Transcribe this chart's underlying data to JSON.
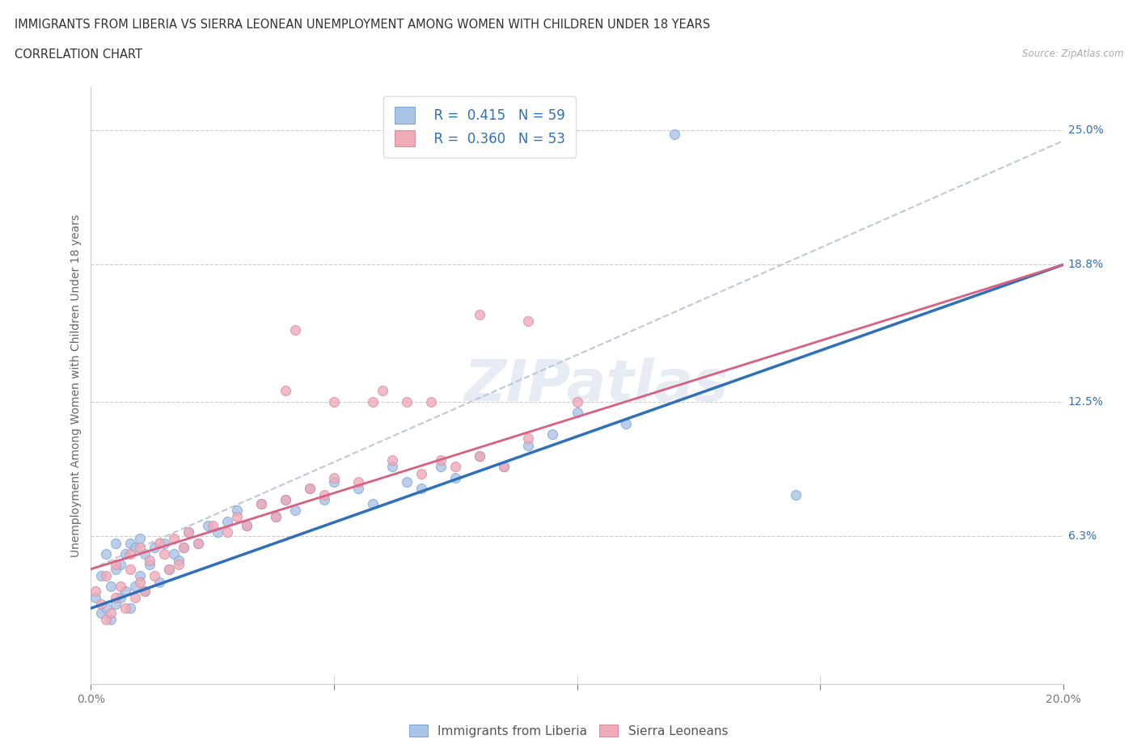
{
  "title_line1": "IMMIGRANTS FROM LIBERIA VS SIERRA LEONEAN UNEMPLOYMENT AMONG WOMEN WITH CHILDREN UNDER 18 YEARS",
  "title_line2": "CORRELATION CHART",
  "source": "Source: ZipAtlas.com",
  "ylabel": "Unemployment Among Women with Children Under 18 years",
  "xlim": [
    0.0,
    0.2
  ],
  "ylim": [
    -0.005,
    0.27
  ],
  "yticks": [
    0.063,
    0.125,
    0.188,
    0.25
  ],
  "ytick_labels": [
    "6.3%",
    "12.5%",
    "18.8%",
    "25.0%"
  ],
  "blue_color": "#aac4e8",
  "pink_color": "#f0aab8",
  "blue_line_color": "#3070b8",
  "pink_line_color": "#d86080",
  "blue_dash_color": "#c0c8d8",
  "watermark": "ZIPatlas",
  "liberia_x": [
    0.001,
    0.002,
    0.002,
    0.003,
    0.003,
    0.004,
    0.004,
    0.005,
    0.005,
    0.005,
    0.006,
    0.006,
    0.007,
    0.007,
    0.008,
    0.008,
    0.009,
    0.009,
    0.01,
    0.01,
    0.011,
    0.011,
    0.012,
    0.013,
    0.014,
    0.015,
    0.016,
    0.017,
    0.018,
    0.019,
    0.02,
    0.022,
    0.024,
    0.026,
    0.028,
    0.03,
    0.032,
    0.035,
    0.038,
    0.04,
    0.042,
    0.045,
    0.048,
    0.05,
    0.055,
    0.058,
    0.062,
    0.065,
    0.068,
    0.072,
    0.075,
    0.08,
    0.085,
    0.09,
    0.095,
    0.1,
    0.11,
    0.12,
    0.145
  ],
  "liberia_y": [
    0.035,
    0.028,
    0.045,
    0.03,
    0.055,
    0.025,
    0.04,
    0.032,
    0.048,
    0.06,
    0.035,
    0.05,
    0.038,
    0.055,
    0.03,
    0.06,
    0.04,
    0.058,
    0.045,
    0.062,
    0.038,
    0.055,
    0.05,
    0.058,
    0.042,
    0.06,
    0.048,
    0.055,
    0.052,
    0.058,
    0.065,
    0.06,
    0.068,
    0.065,
    0.07,
    0.075,
    0.068,
    0.078,
    0.072,
    0.08,
    0.075,
    0.085,
    0.08,
    0.088,
    0.085,
    0.078,
    0.095,
    0.088,
    0.085,
    0.095,
    0.09,
    0.1,
    0.095,
    0.105,
    0.11,
    0.12,
    0.115,
    0.248,
    0.082
  ],
  "sierra_x": [
    0.001,
    0.002,
    0.003,
    0.003,
    0.004,
    0.005,
    0.005,
    0.006,
    0.007,
    0.008,
    0.008,
    0.009,
    0.01,
    0.01,
    0.011,
    0.012,
    0.013,
    0.014,
    0.015,
    0.016,
    0.017,
    0.018,
    0.019,
    0.02,
    0.022,
    0.025,
    0.028,
    0.03,
    0.032,
    0.035,
    0.038,
    0.04,
    0.042,
    0.045,
    0.048,
    0.05,
    0.055,
    0.058,
    0.062,
    0.065,
    0.068,
    0.072,
    0.075,
    0.08,
    0.085,
    0.09,
    0.04,
    0.05,
    0.06,
    0.07,
    0.08,
    0.09,
    0.1
  ],
  "sierra_y": [
    0.038,
    0.032,
    0.025,
    0.045,
    0.028,
    0.035,
    0.05,
    0.04,
    0.03,
    0.048,
    0.055,
    0.035,
    0.042,
    0.058,
    0.038,
    0.052,
    0.045,
    0.06,
    0.055,
    0.048,
    0.062,
    0.05,
    0.058,
    0.065,
    0.06,
    0.068,
    0.065,
    0.072,
    0.068,
    0.078,
    0.072,
    0.08,
    0.158,
    0.085,
    0.082,
    0.09,
    0.088,
    0.125,
    0.098,
    0.125,
    0.092,
    0.098,
    0.095,
    0.1,
    0.095,
    0.108,
    0.13,
    0.125,
    0.13,
    0.125,
    0.165,
    0.162,
    0.125
  ],
  "trend_liberia_x0": 0.0,
  "trend_liberia_y0": 0.03,
  "trend_liberia_x1": 0.2,
  "trend_liberia_y1": 0.188,
  "trend_sierra_x0": 0.0,
  "trend_sierra_y0": 0.048,
  "trend_sierra_x1": 0.2,
  "trend_sierra_y1": 0.188,
  "trend_sierra_dash_x0": 0.0,
  "trend_sierra_dash_y0": 0.048,
  "trend_sierra_dash_x1": 0.2,
  "trend_sierra_dash_y1": 0.245
}
